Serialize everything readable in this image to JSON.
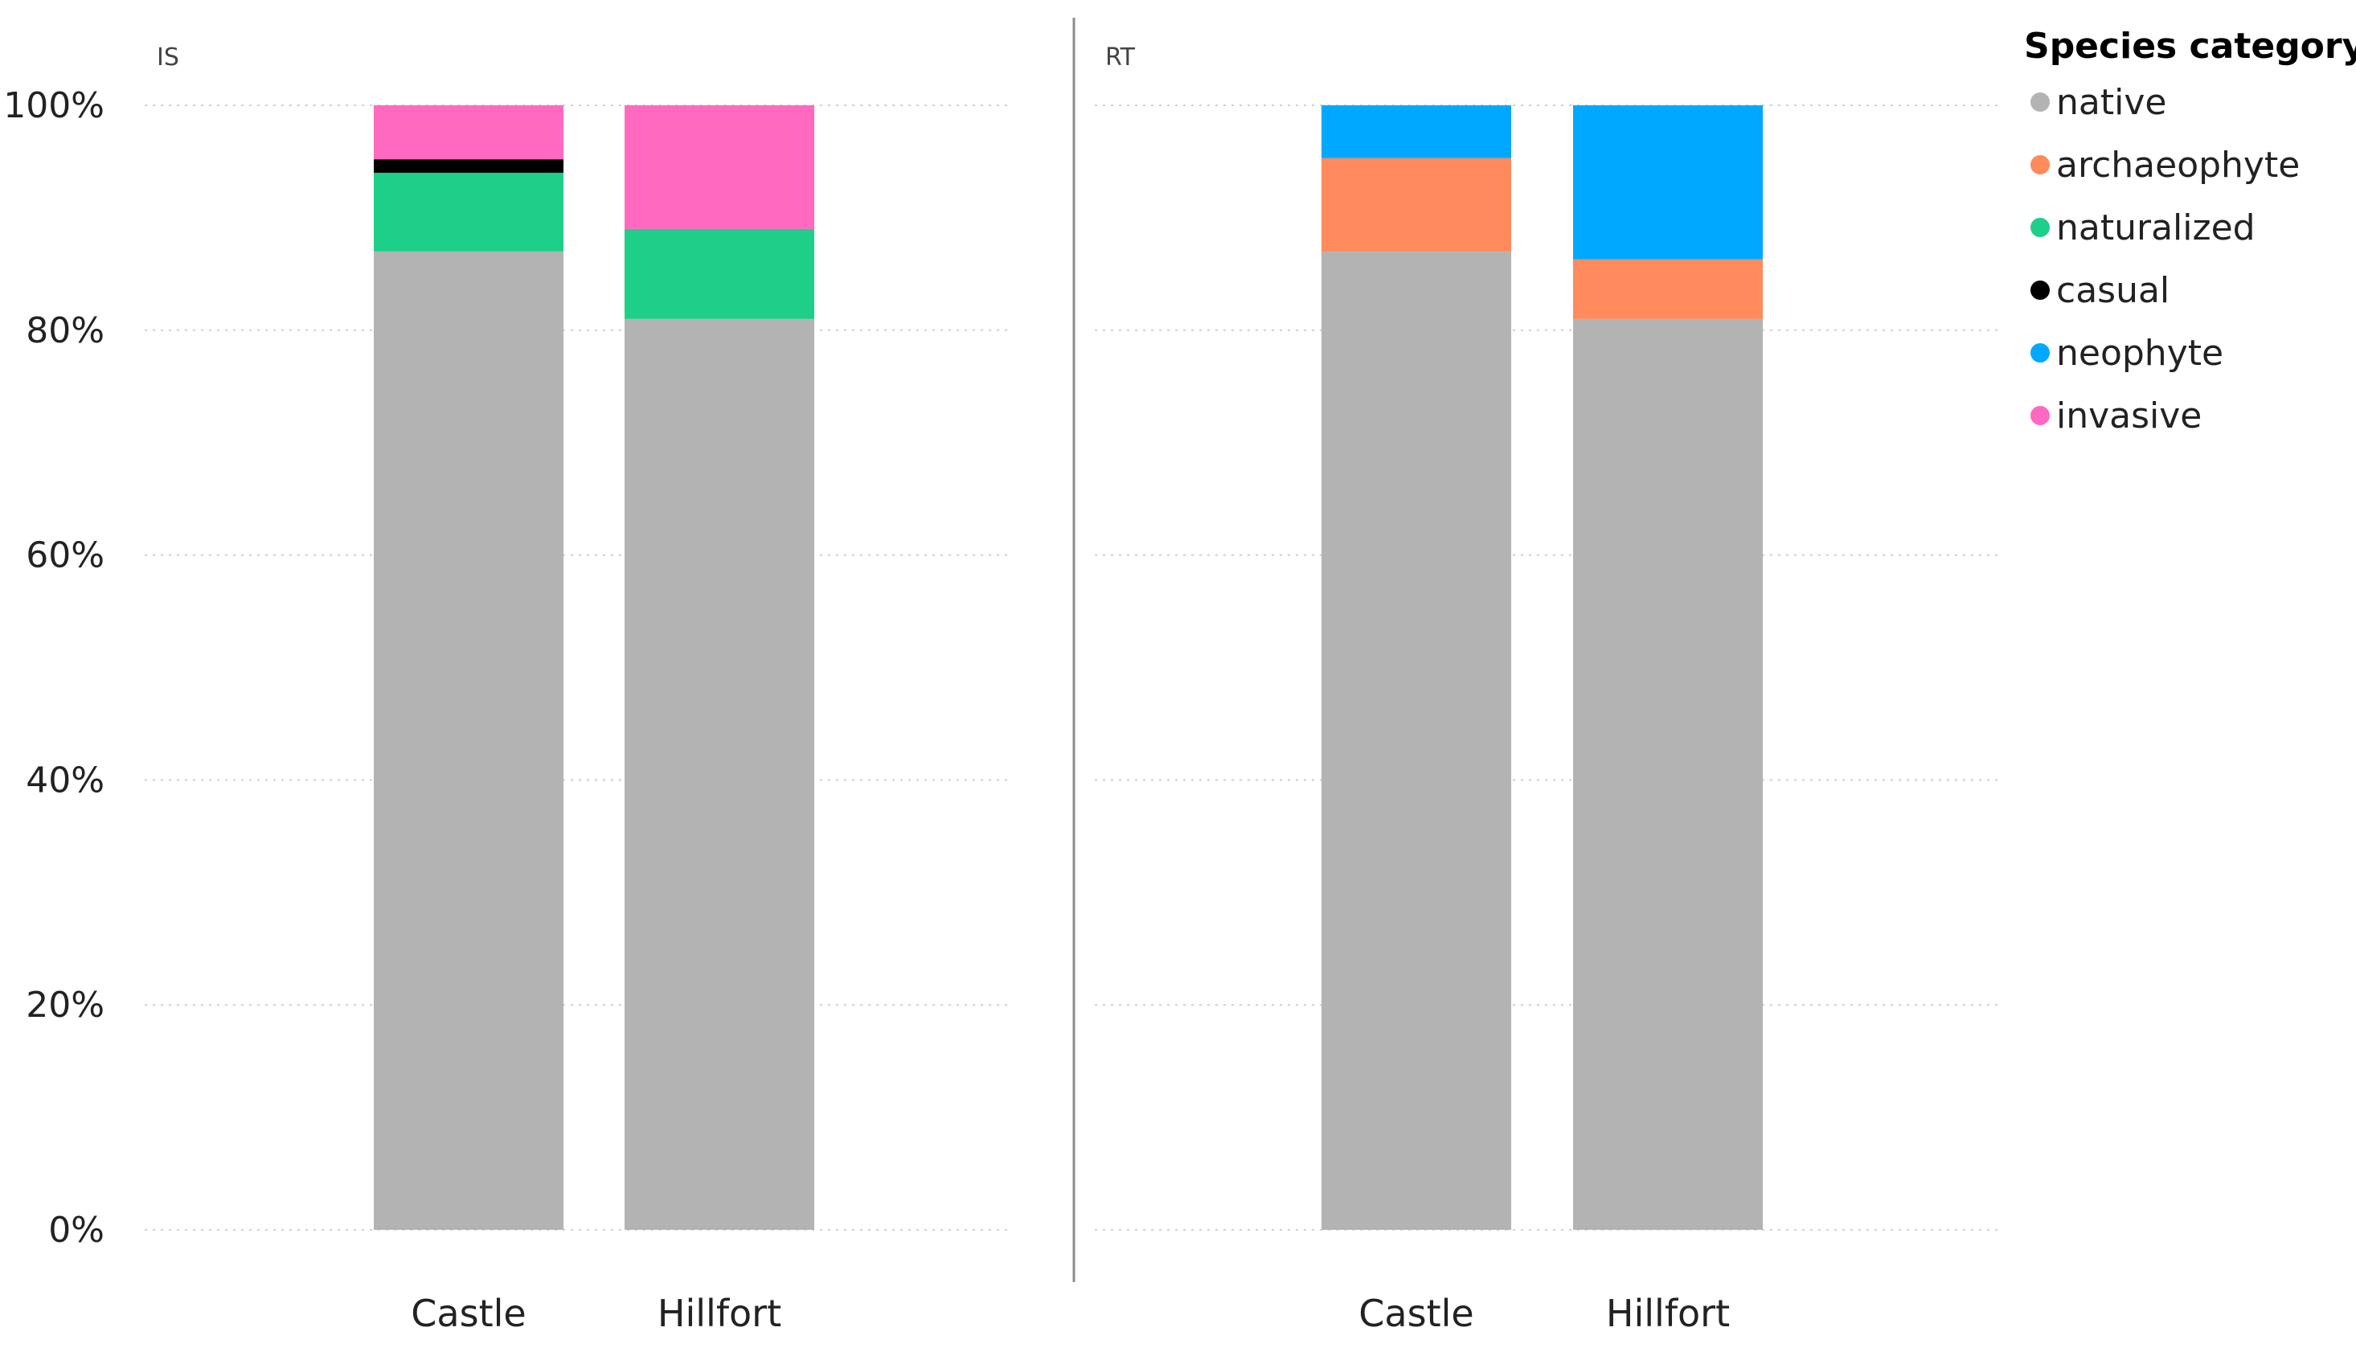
{
  "chart_data": {
    "type": "bar",
    "stacked": true,
    "normalized": true,
    "panels": [
      {
        "label": "IS",
        "categories": [
          "Castle",
          "Hillfort"
        ],
        "series": [
          {
            "name": "native",
            "values": [
              87.0,
              81.0
            ]
          },
          {
            "name": "archaeophyte",
            "values": [
              0,
              0
            ]
          },
          {
            "name": "naturalized",
            "values": [
              7.0,
              8.0
            ]
          },
          {
            "name": "casual",
            "values": [
              1.2,
              0
            ]
          },
          {
            "name": "neophyte",
            "values": [
              0,
              0
            ]
          },
          {
            "name": "invasive",
            "values": [
              4.8,
              11.0
            ]
          }
        ]
      },
      {
        "label": "RT",
        "categories": [
          "Castle",
          "Hillfort"
        ],
        "series": [
          {
            "name": "native",
            "values": [
              87.0,
              81.0
            ]
          },
          {
            "name": "archaeophyte",
            "values": [
              8.3,
              5.3
            ]
          },
          {
            "name": "naturalized",
            "values": [
              0,
              0
            ]
          },
          {
            "name": "casual",
            "values": [
              0,
              0
            ]
          },
          {
            "name": "neophyte",
            "values": [
              4.7,
              13.7
            ]
          },
          {
            "name": "invasive",
            "values": [
              0,
              0
            ]
          }
        ]
      }
    ],
    "ylim": [
      0,
      100
    ],
    "yticks": [
      "0%",
      "20%",
      "40%",
      "60%",
      "80%",
      "100%"
    ],
    "grid": true,
    "legend": {
      "title": "Species category",
      "position": "top-right",
      "entries": [
        "native",
        "archaeophyte",
        "naturalized",
        "casual",
        "neophyte",
        "invasive"
      ]
    },
    "colors": {
      "native": "#b3b3b3",
      "archaeophyte": "#ff8a5c",
      "naturalized": "#1ecf8a",
      "casual": "#000000",
      "neophyte": "#00a8ff",
      "invasive": "#ff69c0"
    }
  }
}
